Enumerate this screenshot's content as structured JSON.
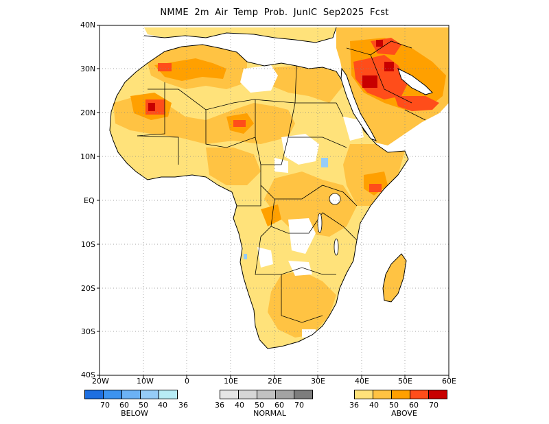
{
  "title": "NMME 2m Air Temp Prob. JunIC  Sep2025 Fcst",
  "axes": {
    "lat_labels": [
      "40N",
      "30N",
      "20N",
      "10N",
      "EQ",
      "10S",
      "20S",
      "30S",
      "40S"
    ],
    "lon_labels": [
      "20W",
      "10W",
      "0",
      "10E",
      "20E",
      "30E",
      "40E",
      "50E",
      "60E"
    ]
  },
  "legend": {
    "below": {
      "name": "BELOW",
      "ticks": [
        "70",
        "60",
        "50",
        "40",
        "36"
      ],
      "colors": [
        "#1e6fe0",
        "#3c93f0",
        "#6cb2f5",
        "#96ccf7",
        "#b8ecf5"
      ]
    },
    "normal": {
      "name": "NORMAL",
      "ticks": [
        "36",
        "40",
        "50",
        "60",
        "70"
      ],
      "colors": [
        "#e6e6e6",
        "#d6d6d6",
        "#c2c2c2",
        "#a3a3a3",
        "#7d7d7d"
      ]
    },
    "above": {
      "name": "ABOVE",
      "ticks": [
        "36",
        "40",
        "50",
        "60",
        "70"
      ],
      "colors": [
        "#ffe27a",
        "#ffc343",
        "#ffa000",
        "#ff4d1a",
        "#c80000"
      ]
    }
  },
  "map_colors": {
    "coast": "#000000",
    "grid": "#888888",
    "land_light": "#ffe27a",
    "land_mid": "#ffc343",
    "land_high": "#ffa000",
    "land_peak": "#ff4d1a",
    "land_max": "#c80000",
    "below_light": "#96ccf7"
  }
}
